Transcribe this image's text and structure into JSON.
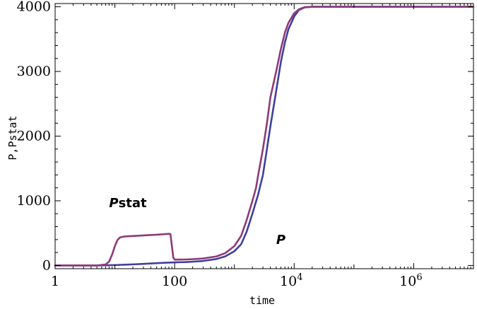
{
  "chart_data": {
    "type": "line",
    "xscale": "log",
    "xlim": [
      1,
      10000000
    ],
    "ylim": [
      -50,
      4050
    ],
    "xlabel": "time",
    "ylabel": "P,Pstat",
    "grid": false,
    "yticks": [
      0,
      1000,
      2000,
      3000,
      4000
    ],
    "yticklabels": [
      "0",
      "1000",
      "2000",
      "3000",
      "4000"
    ],
    "xticks": [
      1,
      100,
      10000,
      1000000
    ],
    "xtick_base": [
      "1",
      "100",
      "10",
      "10"
    ],
    "xtick_exp": [
      "",
      "",
      "4",
      "6"
    ],
    "annotations": [
      {
        "series": "Pstat",
        "italic": "P",
        "rest": "stat",
        "x": 8,
        "y": 900
      },
      {
        "series": "P",
        "italic": "P",
        "rest": "",
        "x": 5000,
        "y": 330
      }
    ],
    "series": [
      {
        "name": "P",
        "color": "#3f3f9e",
        "x": [
          1,
          5,
          7,
          10,
          15,
          20,
          30,
          50,
          70,
          100,
          150,
          200,
          300,
          500,
          700,
          1000,
          1300,
          1600,
          2000,
          2500,
          3000,
          3500,
          4000,
          5000,
          6000,
          7000,
          8000,
          10000,
          12000,
          15000,
          20000,
          25000,
          30000,
          50000,
          100000,
          1000000,
          10000000
        ],
        "y": [
          0,
          0,
          3,
          6,
          12,
          17,
          25,
          35,
          42,
          48,
          52,
          58,
          70,
          100,
          140,
          220,
          330,
          520,
          800,
          1100,
          1400,
          1800,
          2150,
          2700,
          3150,
          3450,
          3650,
          3850,
          3950,
          3990,
          4000,
          4000,
          4000,
          4000,
          4000,
          4000,
          4000
        ]
      },
      {
        "name": "Pstat",
        "color": "#8e3a78",
        "x": [
          1,
          5,
          7,
          8,
          9,
          10,
          11,
          12,
          13,
          15,
          20,
          30,
          50,
          70,
          80,
          85,
          90,
          95,
          100,
          150,
          200,
          300,
          500,
          700,
          1000,
          1300,
          1600,
          2000,
          2300,
          2500,
          3000,
          3500,
          4000,
          5000,
          6000,
          7000,
          8000,
          10000,
          12000,
          15000,
          20000,
          25000,
          30000,
          50000,
          100000,
          1000000,
          10000000
        ],
        "y": [
          0,
          0,
          15,
          60,
          170,
          300,
          390,
          430,
          440,
          450,
          455,
          465,
          475,
          485,
          490,
          485,
          300,
          120,
          90,
          92,
          97,
          108,
          140,
          190,
          300,
          460,
          700,
          1000,
          1200,
          1400,
          1800,
          2200,
          2600,
          3000,
          3350,
          3600,
          3750,
          3900,
          3960,
          3995,
          4000,
          4000,
          4000,
          4000,
          4000,
          4000,
          4000
        ]
      }
    ]
  }
}
